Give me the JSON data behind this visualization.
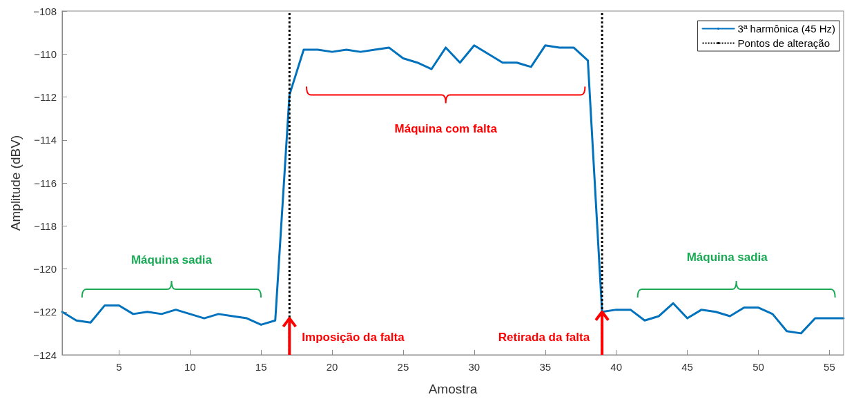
{
  "chart_data": {
    "type": "line",
    "xlabel": "Amostra",
    "ylabel": "Amplitude (dBV)",
    "x": [
      1,
      2,
      3,
      4,
      5,
      6,
      7,
      8,
      9,
      10,
      11,
      12,
      13,
      14,
      15,
      16,
      17,
      18,
      19,
      20,
      21,
      22,
      23,
      24,
      25,
      26,
      27,
      28,
      29,
      30,
      31,
      32,
      33,
      34,
      35,
      36,
      37,
      38,
      39,
      40,
      41,
      42,
      43,
      44,
      45,
      46,
      47,
      48,
      49,
      50,
      51,
      52,
      53,
      54,
      55,
      56
    ],
    "series": [
      {
        "name": "3ª harmônica (45 Hz)",
        "color": "#0072bd",
        "values": [
          -122.0,
          -122.4,
          -122.5,
          -121.7,
          -121.7,
          -122.1,
          -122.0,
          -122.1,
          -121.9,
          -122.1,
          -122.3,
          -122.1,
          -122.2,
          -122.3,
          -122.6,
          -122.4,
          -111.9,
          -109.8,
          -109.8,
          -109.9,
          -109.8,
          -109.9,
          -109.8,
          -109.7,
          -110.2,
          -110.4,
          -110.7,
          -109.7,
          -110.4,
          -109.6,
          -110.0,
          -110.4,
          -110.4,
          -110.6,
          -109.6,
          -109.7,
          -109.7,
          -110.3,
          -122.0,
          -121.9,
          -121.9,
          -122.4,
          -122.2,
          -121.6,
          -122.3,
          -121.9,
          -122.0,
          -122.2,
          -121.8,
          -121.8,
          -122.1,
          -122.9,
          -123.0,
          -122.3,
          -122.3,
          -122.3
        ]
      }
    ],
    "ref_lines": [
      {
        "axis": "x",
        "value": 17,
        "label": "Pontos de alteração",
        "color": "#000000",
        "line_style": "dotted"
      },
      {
        "axis": "x",
        "value": 39,
        "color": "#000000",
        "line_style": "dotted"
      }
    ],
    "annotations": [
      "Máquina sadia",
      "Máquina com falta",
      "Máquina sadia",
      {
        "text": "Imposição da falta",
        "x": 17,
        "y": -122.3
      },
      {
        "text": "Retirada da falta",
        "x": 39,
        "y": -122.0
      }
    ],
    "xlim": [
      1,
      56
    ],
    "xticks": [
      5,
      10,
      15,
      20,
      25,
      30,
      35,
      40,
      45,
      50,
      55
    ],
    "ylim": [
      -124,
      -108
    ],
    "yticks": [
      -124,
      -122,
      -120,
      -118,
      -116,
      -114,
      -112,
      -110,
      -108
    ],
    "grid": false,
    "legend": "top right",
    "marker": "none",
    "line_style": "solid"
  }
}
